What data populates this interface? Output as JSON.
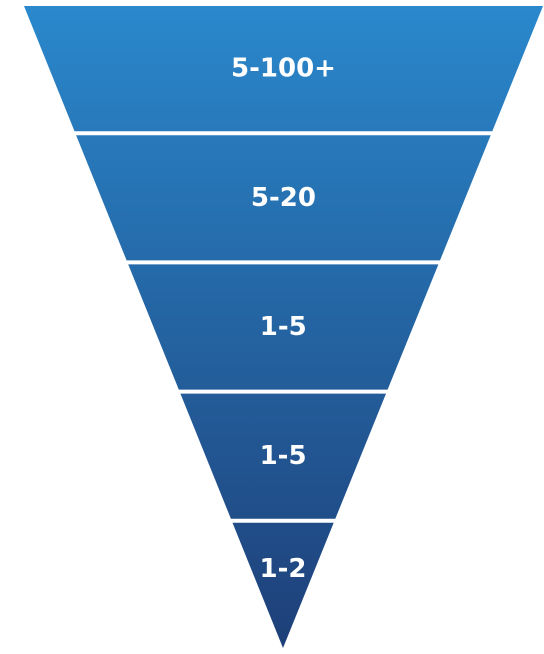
{
  "funnel": {
    "colors": {
      "top": "#2a88cc",
      "bottom": "#1e3f78",
      "separator": "#ffffff",
      "label": "#ffffff"
    },
    "segments": [
      {
        "label": "5-100+"
      },
      {
        "label": "5-20"
      },
      {
        "label": "1-5"
      },
      {
        "label": "1-5"
      },
      {
        "label": "1-2"
      }
    ]
  }
}
